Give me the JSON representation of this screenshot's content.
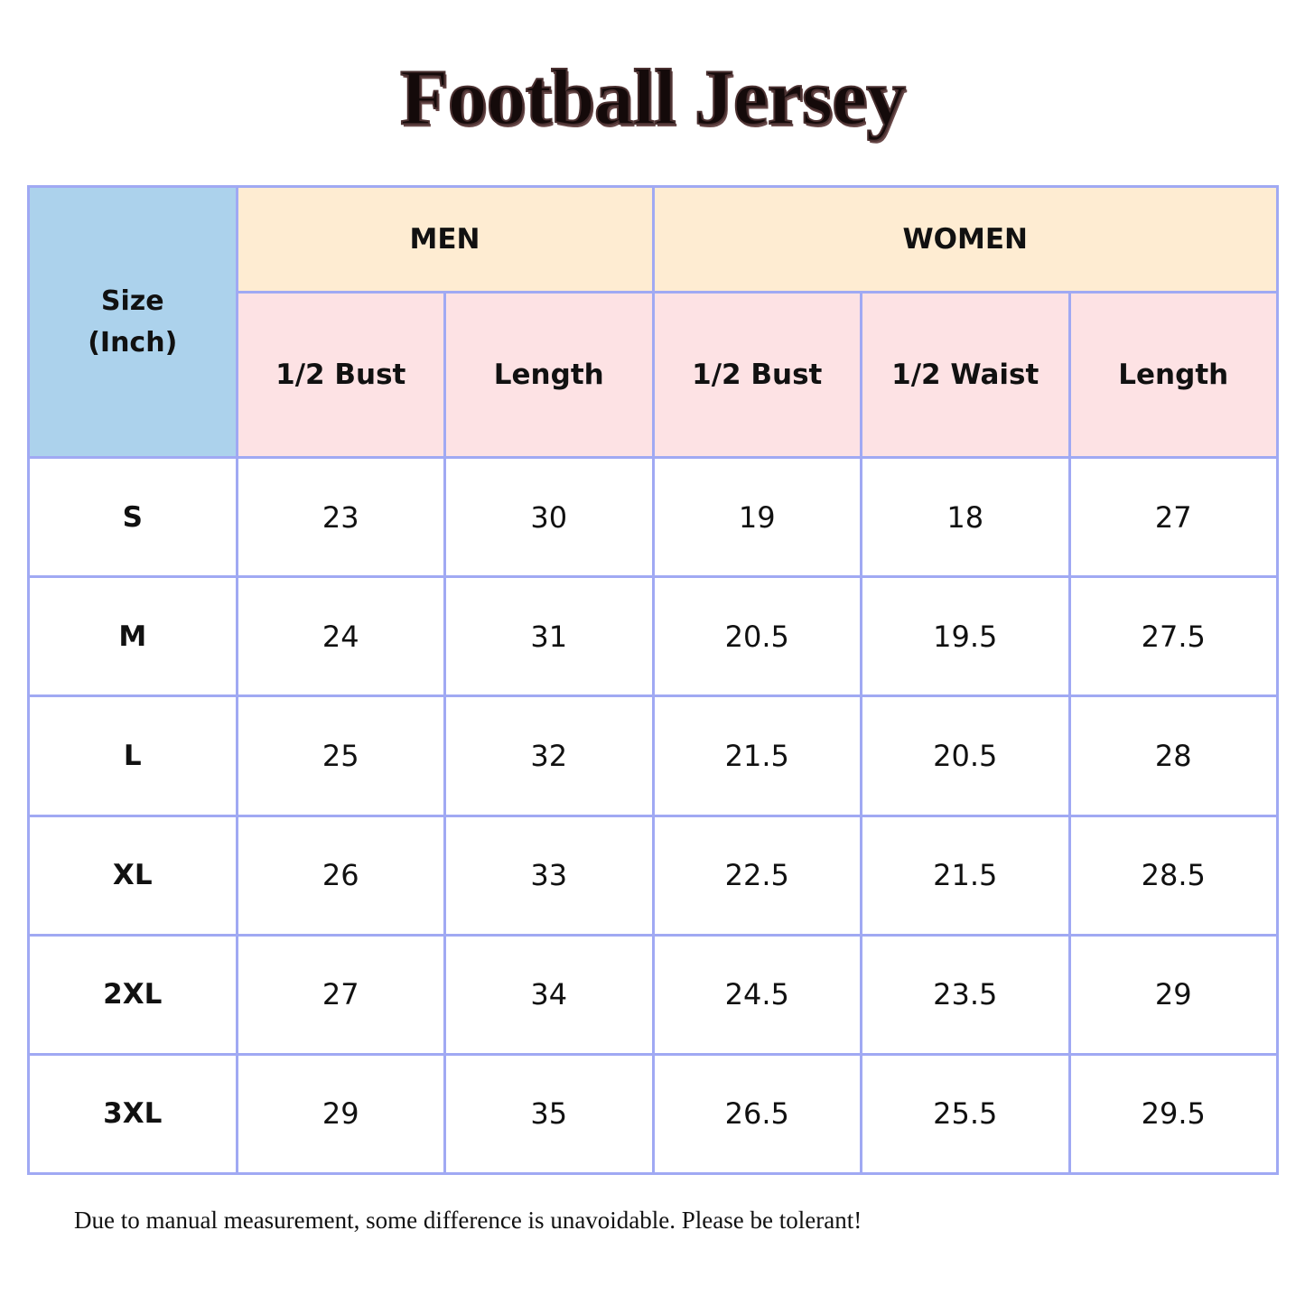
{
  "header": {
    "title": "Football Jersey"
  },
  "table": {
    "corner": [
      "Size",
      "(Inch)"
    ],
    "groups": [
      "MEN",
      "WOMEN"
    ],
    "columns": [
      "1/2 Bust",
      "Length",
      "1/2 Bust",
      "1/2 Waist",
      "Length"
    ],
    "rows": [
      [
        "S",
        "23",
        "30",
        "19",
        "18",
        "27"
      ],
      [
        "M",
        "24",
        "31",
        "20.5",
        "19.5",
        "27.5"
      ],
      [
        "L",
        "25",
        "32",
        "21.5",
        "20.5",
        "28"
      ],
      [
        "XL",
        "26",
        "33",
        "22.5",
        "21.5",
        "28.5"
      ],
      [
        "2XL",
        "27",
        "34",
        "24.5",
        "23.5",
        "29"
      ],
      [
        "3XL",
        "29",
        "35",
        "26.5",
        "25.5",
        "29.5"
      ]
    ]
  },
  "note": "Due to manual measurement, some difference is unavoidable. Please be tolerant!"
}
